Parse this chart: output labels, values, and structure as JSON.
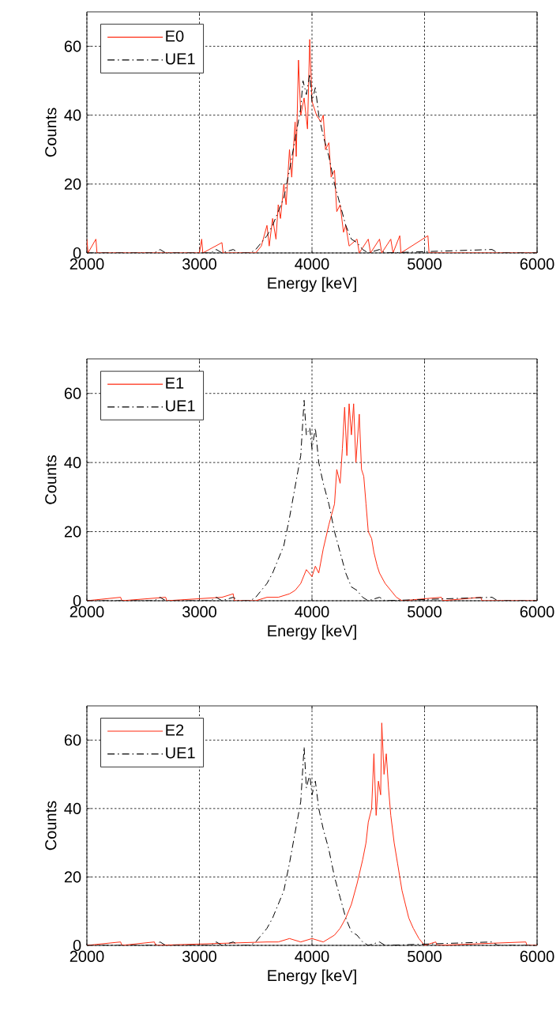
{
  "chart_data": [
    {
      "type": "line",
      "xlabel": "Energy [keV]",
      "ylabel": "Counts",
      "xlim": [
        2000,
        6000
      ],
      "ylim": [
        0,
        70
      ],
      "xticks": [
        2000,
        3000,
        4000,
        5000,
        6000
      ],
      "yticks": [
        0,
        20,
        40,
        60
      ],
      "grid": true,
      "legend": "top left",
      "series": [
        {
          "name": "E0",
          "color": "#ff2a10",
          "line_style": "solid",
          "x": [
            2000,
            2010,
            2080,
            2090,
            3000,
            3020,
            3030,
            3200,
            3210,
            3500,
            3550,
            3600,
            3620,
            3650,
            3680,
            3700,
            3720,
            3750,
            3770,
            3800,
            3820,
            3850,
            3860,
            3880,
            3900,
            3920,
            3930,
            3950,
            3960,
            3980,
            4000,
            4020,
            4040,
            4060,
            4080,
            4100,
            4120,
            4150,
            4170,
            4200,
            4220,
            4250,
            4280,
            4300,
            4330,
            4400,
            4420,
            4500,
            4520,
            4600,
            4620,
            4700,
            4720,
            4780,
            4790,
            5030,
            5040,
            6000
          ],
          "values": [
            4,
            0,
            4,
            0,
            0,
            4,
            0,
            3,
            0,
            0,
            2,
            8,
            2,
            10,
            4,
            14,
            10,
            20,
            14,
            30,
            22,
            38,
            28,
            56,
            40,
            null,
            45,
            null,
            36,
            62,
            44,
            null,
            40,
            null,
            38,
            40,
            30,
            32,
            22,
            24,
            12,
            14,
            6,
            8,
            2,
            4,
            0,
            4,
            0,
            4,
            0,
            4,
            0,
            5,
            0,
            5,
            0,
            0
          ]
        },
        {
          "name": "UE1",
          "color": "#000000",
          "line_style": "dashdot",
          "x": [
            2000,
            2600,
            2650,
            2700,
            3100,
            3150,
            3200,
            3300,
            3350,
            3450,
            3500,
            3550,
            3600,
            3650,
            3700,
            3750,
            3800,
            3850,
            3900,
            3920,
            3950,
            3980,
            4000,
            4030,
            4060,
            4100,
            4150,
            4200,
            4250,
            4300,
            4350,
            4400,
            4450,
            4500,
            4600,
            4650,
            5600,
            5650,
            6000
          ],
          "values": [
            0,
            0,
            1,
            0,
            0,
            1,
            0,
            1,
            0,
            0,
            1,
            3,
            5,
            8,
            12,
            16,
            24,
            33,
            42,
            50,
            46,
            52,
            44,
            48,
            40,
            34,
            28,
            20,
            14,
            8,
            4,
            3,
            1,
            0,
            1,
            0,
            1,
            0,
            0
          ]
        }
      ]
    },
    {
      "type": "line",
      "xlabel": "Energy [keV]",
      "ylabel": "Counts",
      "xlim": [
        2000,
        6000
      ],
      "ylim": [
        0,
        70
      ],
      "xticks": [
        2000,
        3000,
        4000,
        5000,
        6000
      ],
      "yticks": [
        0,
        20,
        40,
        60
      ],
      "grid": true,
      "legend": "top left",
      "series": [
        {
          "name": "E1",
          "color": "#ff2a10",
          "line_style": "solid",
          "x": [
            2000,
            2300,
            2310,
            2700,
            2710,
            3200,
            3300,
            3310,
            3500,
            3600,
            3700,
            3800,
            3850,
            3900,
            3950,
            4000,
            4030,
            4060,
            4100,
            4150,
            4200,
            4220,
            4250,
            4270,
            4290,
            4310,
            4330,
            4350,
            4370,
            4390,
            4420,
            4440,
            4460,
            4480,
            4500,
            4530,
            4550,
            4580,
            4600,
            4650,
            4700,
            4750,
            4800,
            5150,
            5160,
            5500,
            5510,
            6000
          ],
          "values": [
            0,
            1,
            0,
            1,
            0,
            1,
            2,
            0,
            0,
            1,
            1,
            2,
            3,
            5,
            9,
            7,
            10,
            8,
            15,
            22,
            28,
            38,
            34,
            44,
            56,
            42,
            57,
            48,
            57,
            40,
            54,
            38,
            36,
            28,
            20,
            18,
            14,
            10,
            8,
            5,
            3,
            1,
            0,
            1,
            0,
            1,
            0,
            0
          ]
        },
        {
          "name": "UE1",
          "color": "#000000",
          "line_style": "dashdot",
          "x": [
            2000,
            2600,
            2650,
            2700,
            3100,
            3150,
            3200,
            3300,
            3350,
            3450,
            3500,
            3550,
            3600,
            3650,
            3700,
            3750,
            3800,
            3850,
            3900,
            3930,
            3950,
            3980,
            4000,
            4030,
            4060,
            4100,
            4150,
            4200,
            4250,
            4300,
            4350,
            4400,
            4450,
            4500,
            4600,
            4650,
            5600,
            5650,
            6000
          ],
          "values": [
            0,
            0,
            1,
            0,
            0,
            1,
            0,
            1,
            0,
            0,
            1,
            3,
            5,
            8,
            12,
            16,
            24,
            33,
            42,
            58,
            48,
            50,
            44,
            50,
            40,
            34,
            28,
            20,
            14,
            8,
            4,
            3,
            1,
            0,
            1,
            0,
            1,
            0,
            0
          ]
        }
      ]
    },
    {
      "type": "line",
      "xlabel": "Energy [keV]",
      "ylabel": "Counts",
      "xlim": [
        2000,
        6000
      ],
      "ylim": [
        0,
        70
      ],
      "xticks": [
        2000,
        3000,
        4000,
        5000,
        6000
      ],
      "yticks": [
        0,
        20,
        40,
        60
      ],
      "grid": true,
      "legend": "top left",
      "series": [
        {
          "name": "E2",
          "color": "#ff2a10",
          "line_style": "solid",
          "x": [
            2000,
            2300,
            2310,
            2600,
            2610,
            3600,
            3700,
            3800,
            3900,
            4000,
            4100,
            4150,
            4200,
            4250,
            4300,
            4350,
            4400,
            4450,
            4480,
            4500,
            4530,
            4550,
            4570,
            4590,
            4610,
            4620,
            4640,
            4660,
            4680,
            4700,
            4730,
            4760,
            4800,
            4830,
            4860,
            4900,
            4950,
            5000,
            5100,
            5110,
            5900,
            5910,
            6000
          ],
          "values": [
            0,
            1,
            0,
            1,
            0,
            1,
            1,
            2,
            1,
            2,
            1,
            2,
            3,
            5,
            8,
            12,
            18,
            25,
            30,
            36,
            40,
            56,
            38,
            48,
            44,
            65,
            50,
            56,
            46,
            38,
            30,
            24,
            16,
            12,
            8,
            5,
            2,
            0,
            1,
            0,
            1,
            0,
            0
          ]
        },
        {
          "name": "UE1",
          "color": "#000000",
          "line_style": "dashdot",
          "x": [
            2000,
            2600,
            2650,
            2700,
            3100,
            3150,
            3200,
            3300,
            3350,
            3450,
            3500,
            3550,
            3600,
            3650,
            3700,
            3750,
            3800,
            3850,
            3900,
            3930,
            3950,
            3980,
            4000,
            4030,
            4060,
            4100,
            4150,
            4200,
            4250,
            4300,
            4350,
            4400,
            4450,
            4500,
            4600,
            4650,
            5600,
            5650,
            6000
          ],
          "values": [
            0,
            0,
            1,
            0,
            0,
            1,
            0,
            1,
            0,
            0,
            1,
            3,
            5,
            8,
            12,
            16,
            24,
            33,
            42,
            58,
            46,
            50,
            44,
            48,
            40,
            34,
            28,
            20,
            14,
            8,
            4,
            3,
            1,
            0,
            1,
            0,
            1,
            0,
            0
          ]
        }
      ]
    }
  ]
}
